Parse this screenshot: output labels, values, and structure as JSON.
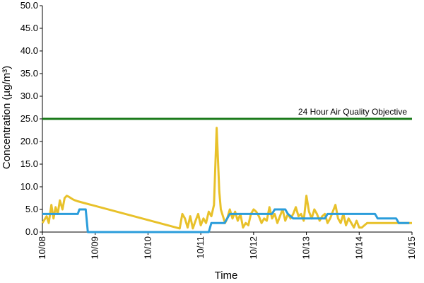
{
  "chart_data": {
    "type": "line",
    "title": "",
    "xlabel": "Time",
    "ylabel": "Concentration (µg/m³)",
    "ylim": [
      0,
      50
    ],
    "yticks": [
      "0.0",
      "5.0",
      "10.0",
      "15.0",
      "20.0",
      "25.0",
      "30.0",
      "35.0",
      "40.0",
      "45.0",
      "50.0"
    ],
    "xticks": [
      "10/08",
      "10/09",
      "10/10",
      "10/11",
      "10/12",
      "10/13",
      "10/14",
      "10/15"
    ],
    "grid": false,
    "legend": "none",
    "objective": {
      "label": "24 Hour Air Quality Objective",
      "value": 25,
      "color": "#1a7a1a"
    },
    "series": [
      {
        "color": "#e8c12a",
        "x": [
          0.0,
          0.08,
          0.12,
          0.17,
          0.21,
          0.25,
          0.29,
          0.33,
          0.38,
          0.42,
          0.46,
          0.5,
          0.54,
          0.58,
          0.62,
          0.67,
          2.6,
          2.65,
          2.7,
          2.75,
          2.8,
          2.85,
          2.9,
          2.95,
          3.0,
          3.05,
          3.1,
          3.15,
          3.2,
          3.25,
          3.3,
          3.35,
          3.38,
          3.42,
          3.46,
          3.5,
          3.55,
          3.6,
          3.65,
          3.7,
          3.75,
          3.8,
          3.85,
          3.9,
          3.95,
          4.0,
          4.05,
          4.1,
          4.15,
          4.2,
          4.25,
          4.3,
          4.35,
          4.4,
          4.45,
          4.5,
          4.55,
          4.6,
          4.65,
          4.7,
          4.75,
          4.8,
          4.85,
          4.9,
          4.95,
          5.0,
          5.05,
          5.1,
          5.15,
          5.2,
          5.25,
          5.3,
          5.35,
          5.4,
          5.45,
          5.5,
          5.55,
          5.6,
          5.65,
          5.7,
          5.75,
          5.8,
          5.85,
          5.9,
          5.95,
          6.0,
          6.05,
          6.1,
          6.15,
          6.2,
          6.25,
          6.3,
          6.35,
          6.4,
          6.45,
          6.5,
          6.55,
          6.6,
          6.65,
          6.7,
          6.75,
          6.8,
          6.85,
          6.9,
          6.95,
          7.0
        ],
        "values": [
          2.0,
          3.5,
          2.0,
          6.0,
          3.0,
          5.5,
          4.0,
          7.0,
          5.0,
          7.5,
          8.0,
          7.8,
          7.5,
          7.2,
          7.0,
          6.8,
          0.8,
          4.0,
          3.0,
          1.0,
          3.5,
          0.8,
          2.5,
          4.0,
          1.5,
          3.0,
          2.0,
          4.5,
          3.5,
          6.0,
          23.0,
          9.0,
          5.0,
          3.5,
          2.0,
          3.0,
          5.0,
          3.0,
          4.5,
          2.5,
          4.0,
          1.0,
          2.0,
          1.5,
          4.0,
          5.0,
          4.5,
          3.5,
          2.0,
          3.0,
          2.5,
          5.5,
          3.0,
          4.0,
          2.0,
          3.5,
          5.0,
          2.5,
          4.0,
          3.0,
          4.0,
          5.5,
          3.5,
          4.0,
          2.5,
          8.0,
          4.5,
          3.0,
          5.0,
          4.0,
          2.5,
          3.5,
          4.0,
          2.0,
          3.0,
          4.5,
          6.0,
          3.0,
          2.0,
          4.0,
          1.5,
          3.0,
          2.0,
          1.0,
          2.5,
          1.0,
          1.0,
          1.5,
          2.0,
          2.0,
          2.0,
          2.0,
          2.0,
          2.0,
          2.0,
          2.0,
          2.0,
          2.0,
          2.0,
          2.0,
          2.0,
          2.0,
          2.0,
          2.0,
          2.0,
          2.0
        ],
        "count": 0
      },
      {
        "color": "#2b9ddb",
        "x": [
          0.0,
          0.67,
          0.7,
          0.82,
          0.86,
          3.15,
          3.2,
          3.45,
          3.55,
          4.35,
          4.4,
          4.6,
          4.65,
          4.75,
          5.35,
          5.4,
          6.3,
          6.35,
          6.7,
          6.75,
          6.95
        ],
        "values": [
          4.0,
          4.0,
          5.0,
          5.0,
          0.0,
          0.0,
          2.0,
          2.0,
          4.0,
          4.0,
          5.0,
          5.0,
          4.0,
          3.0,
          3.0,
          4.0,
          4.0,
          3.0,
          3.0,
          2.0,
          2.0
        ]
      }
    ]
  }
}
